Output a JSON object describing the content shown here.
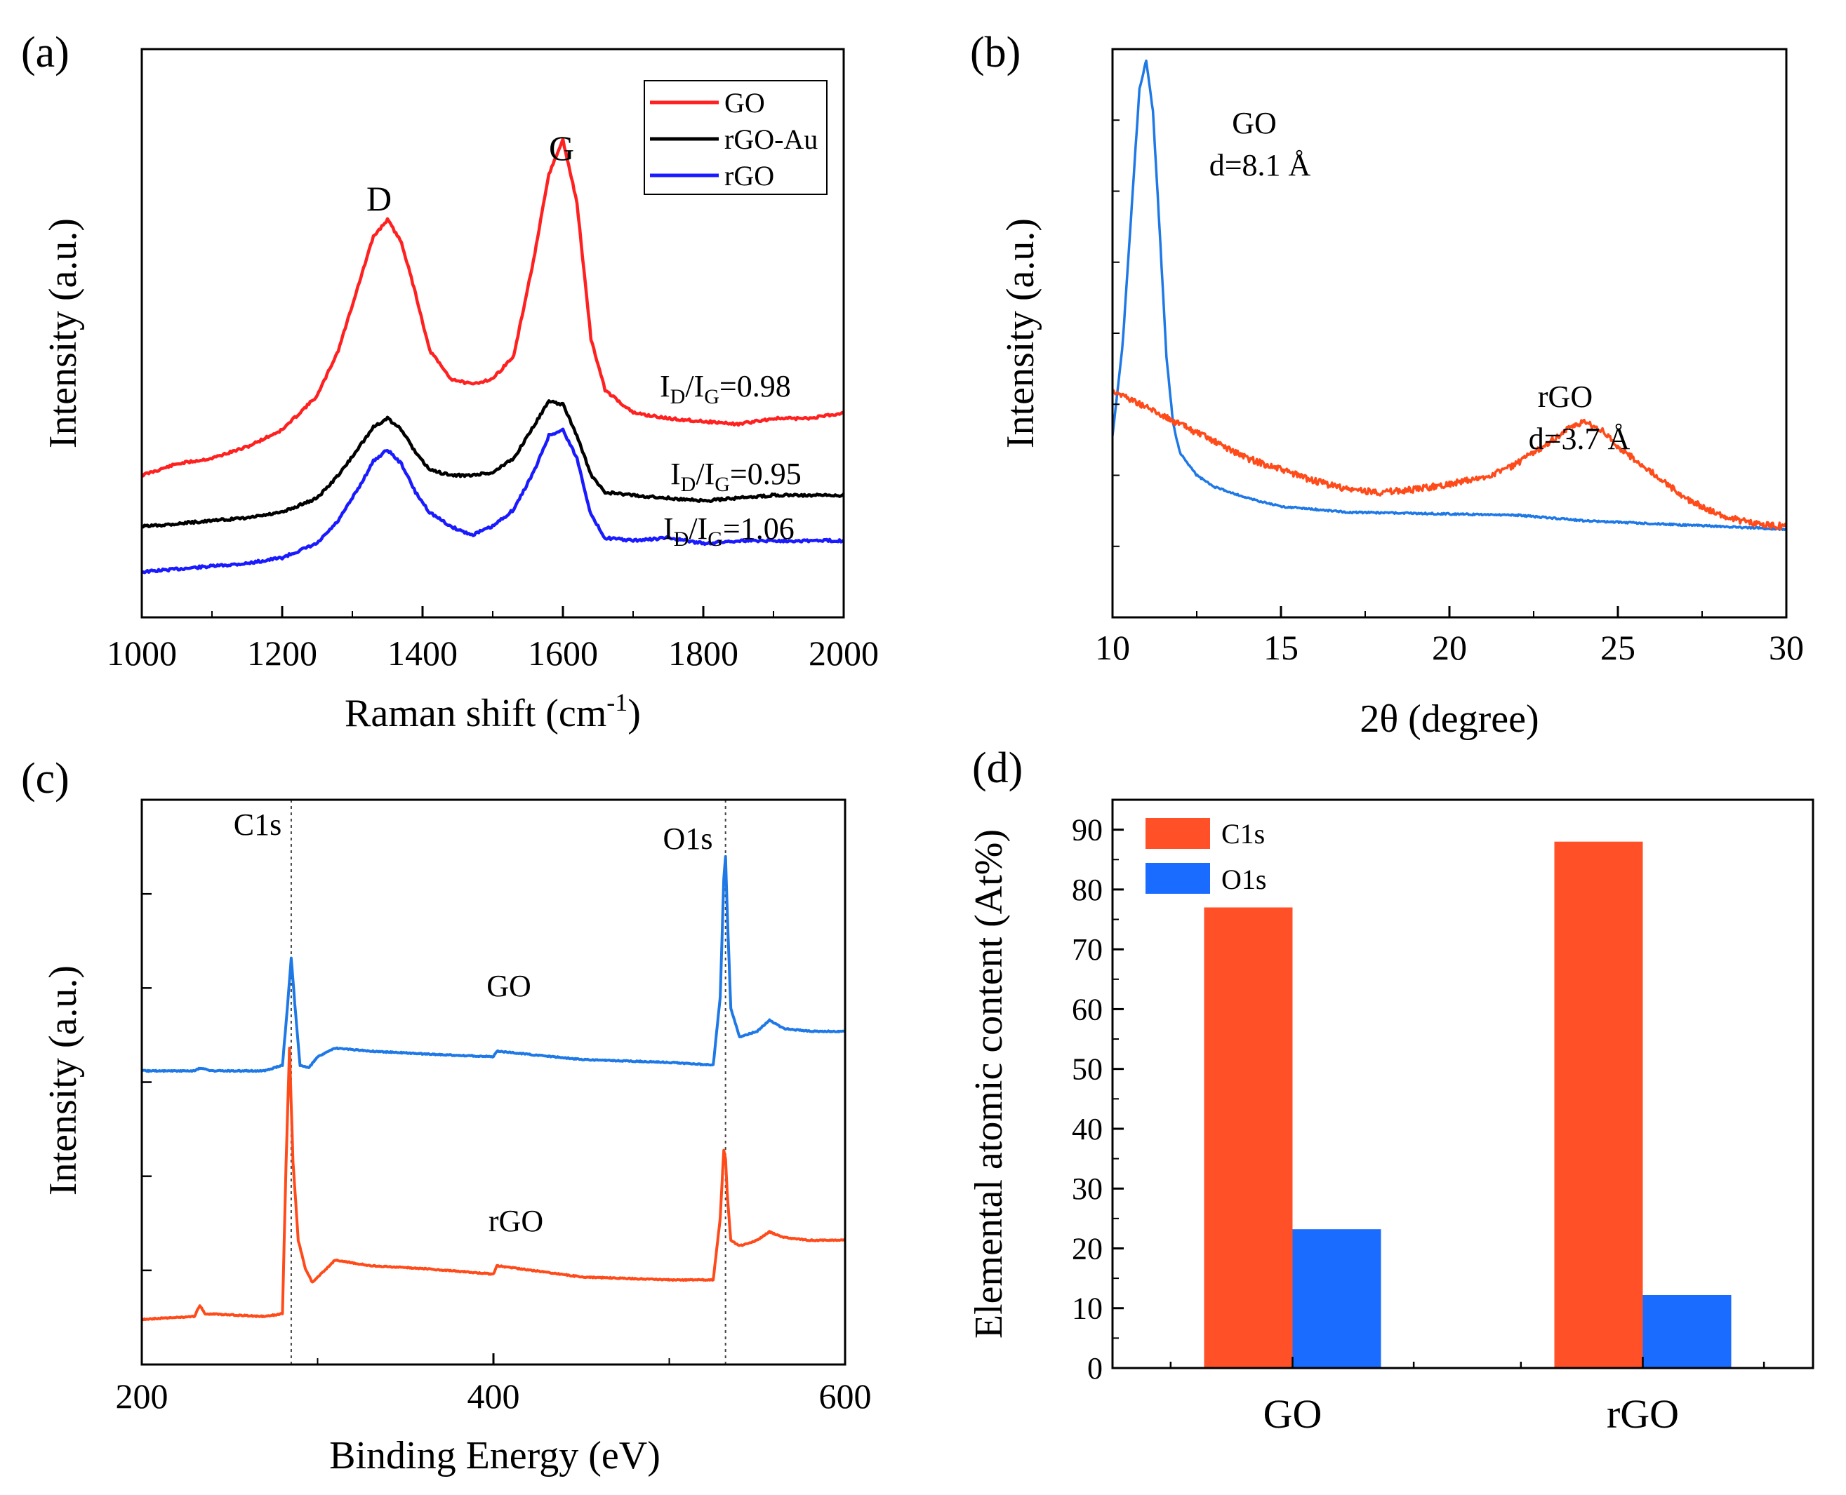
{
  "figure": {
    "panels": [
      {
        "label": "(a)",
        "xlabel_base": "Raman shift (cm",
        "xlabel_sup": "-1",
        "xlabel_end": ")",
        "ylabel": "Intensity (a.u.)",
        "peak_labels": [
          "D",
          "G"
        ],
        "ratio_labels": [
          {
            "pre": "I",
            "sub1": "D",
            "mid": "/I",
            "sub2": "G",
            "val": "=0.98"
          },
          {
            "pre": "I",
            "sub1": "D",
            "mid": "/I",
            "sub2": "G",
            "val": "=0.95"
          },
          {
            "pre": "I",
            "sub1": "D",
            "mid": "/I",
            "sub2": "G",
            "val": "=1.06"
          }
        ]
      },
      {
        "label": "(b)",
        "xlabel": "2θ (degree)",
        "ylabel": "Intensity (a.u.)",
        "annotations": [
          {
            "name": "GO",
            "d": "d=8.1 Å"
          },
          {
            "name": "rGO",
            "d": "d=3.7 Å"
          }
        ]
      },
      {
        "label": "(c)",
        "xlabel": "Binding Energy (eV)",
        "ylabel": "Intensity (a.u.)",
        "peak_labels": [
          "C1s",
          "O1s"
        ],
        "series_labels": [
          "GO",
          "rGO"
        ]
      },
      {
        "label": "(d)",
        "ylabel": "Elemental atomic content (At%)"
      }
    ]
  },
  "chart_data": [
    {
      "type": "line",
      "title": "(a)",
      "xlabel": "Raman shift (cm-1)",
      "ylabel": "Intensity (a.u.)",
      "xlim": [
        1000,
        2000
      ],
      "xticks": [
        1000,
        1200,
        1400,
        1600,
        1800,
        2000
      ],
      "ylim": [
        0,
        10
      ],
      "legend": {
        "position": "top-right",
        "entries": [
          "GO",
          "rGO-Au",
          "rGO"
        ]
      },
      "series": [
        {
          "name": "GO",
          "color": "#ff2020",
          "x": [
            1000,
            1050,
            1100,
            1150,
            1200,
            1250,
            1280,
            1310,
            1330,
            1350,
            1370,
            1390,
            1410,
            1440,
            1470,
            1500,
            1530,
            1560,
            1580,
            1600,
            1620,
            1640,
            1660,
            1700,
            1750,
            1800,
            1850,
            1900,
            1950,
            2000
          ],
          "y": [
            2.5,
            2.7,
            2.8,
            3.0,
            3.3,
            3.9,
            4.7,
            5.9,
            6.7,
            7.0,
            6.6,
            5.7,
            4.7,
            4.2,
            4.1,
            4.2,
            4.6,
            6.4,
            7.8,
            8.4,
            7.3,
            4.9,
            4.0,
            3.6,
            3.5,
            3.45,
            3.4,
            3.5,
            3.5,
            3.6
          ]
        },
        {
          "name": "rGO-Au",
          "color": "#000000",
          "x": [
            1000,
            1050,
            1100,
            1150,
            1200,
            1250,
            1280,
            1310,
            1330,
            1350,
            1370,
            1390,
            1410,
            1440,
            1470,
            1500,
            1530,
            1560,
            1580,
            1600,
            1620,
            1640,
            1660,
            1700,
            1750,
            1800,
            1850,
            1900,
            1950,
            2000
          ],
          "y": [
            1.6,
            1.65,
            1.7,
            1.75,
            1.85,
            2.1,
            2.5,
            3.0,
            3.35,
            3.5,
            3.3,
            2.9,
            2.6,
            2.5,
            2.5,
            2.55,
            2.8,
            3.4,
            3.8,
            3.75,
            3.2,
            2.5,
            2.2,
            2.15,
            2.1,
            2.05,
            2.1,
            2.15,
            2.15,
            2.15
          ]
        },
        {
          "name": "rGO",
          "color": "#1a1aff",
          "x": [
            1000,
            1050,
            1100,
            1150,
            1200,
            1250,
            1280,
            1310,
            1330,
            1350,
            1370,
            1390,
            1410,
            1440,
            1470,
            1500,
            1530,
            1560,
            1580,
            1600,
            1620,
            1640,
            1660,
            1700,
            1750,
            1800,
            1850,
            1900,
            1950,
            2000
          ],
          "y": [
            0.8,
            0.85,
            0.9,
            0.95,
            1.05,
            1.3,
            1.7,
            2.3,
            2.75,
            2.95,
            2.7,
            2.2,
            1.85,
            1.6,
            1.45,
            1.6,
            1.9,
            2.6,
            3.2,
            3.3,
            2.8,
            1.8,
            1.4,
            1.35,
            1.4,
            1.3,
            1.35,
            1.35,
            1.35,
            1.35
          ]
        }
      ]
    },
    {
      "type": "line",
      "title": "(b)",
      "xlabel": "2θ (degree)",
      "ylabel": "Intensity (a.u.)",
      "xlim": [
        10,
        30
      ],
      "xticks": [
        10,
        15,
        20,
        25,
        30
      ],
      "ylim": [
        0,
        10
      ],
      "series": [
        {
          "name": "GO",
          "color": "#1e78e6",
          "x": [
            10,
            10.3,
            10.6,
            10.8,
            11.0,
            11.2,
            11.4,
            11.6,
            11.8,
            12.0,
            12.5,
            13,
            14,
            15,
            17,
            20,
            22,
            24,
            26,
            28,
            30
          ],
          "y": [
            3.2,
            4.8,
            7.5,
            9.3,
            9.8,
            8.9,
            6.8,
            4.6,
            3.4,
            2.9,
            2.5,
            2.3,
            2.1,
            1.95,
            1.85,
            1.82,
            1.8,
            1.7,
            1.65,
            1.6,
            1.55
          ]
        },
        {
          "name": "rGO",
          "color": "#ff4a1a",
          "x": [
            10,
            11,
            12,
            13,
            14,
            15,
            16,
            17,
            18,
            19,
            20,
            21,
            22,
            23,
            23.5,
            24,
            24.5,
            25,
            26,
            27,
            28,
            29,
            30
          ],
          "y": [
            4.0,
            3.7,
            3.4,
            3.1,
            2.8,
            2.6,
            2.4,
            2.25,
            2.2,
            2.25,
            2.35,
            2.45,
            2.7,
            3.1,
            3.3,
            3.45,
            3.3,
            3.0,
            2.55,
            2.1,
            1.8,
            1.65,
            1.6
          ]
        }
      ],
      "annotations": [
        "GO d=8.1 Å",
        "rGO d=3.7 Å"
      ]
    },
    {
      "type": "line",
      "title": "(c)",
      "xlabel": "Binding Energy (eV)",
      "ylabel": "Intensity (a.u.)",
      "xlim": [
        200,
        600
      ],
      "xticks": [
        200,
        400,
        600
      ],
      "ylim": [
        0,
        10
      ],
      "reference_lines_x": [
        285,
        532
      ],
      "series": [
        {
          "name": "GO",
          "color": "#1e78e6",
          "x": [
            200,
            230,
            233,
            240,
            270,
            280,
            283,
            285,
            287,
            290,
            295,
            300,
            310,
            330,
            360,
            400,
            402,
            450,
            500,
            525,
            529,
            531,
            532,
            533,
            535,
            540,
            550,
            557,
            565,
            580,
            600
          ],
          "y": [
            5.2,
            5.2,
            5.25,
            5.2,
            5.2,
            5.3,
            6.4,
            7.2,
            6.4,
            5.3,
            5.25,
            5.45,
            5.6,
            5.55,
            5.5,
            5.45,
            5.55,
            5.4,
            5.35,
            5.3,
            6.5,
            8.6,
            9.0,
            8.0,
            6.3,
            5.8,
            5.9,
            6.1,
            5.95,
            5.9,
            5.9
          ]
        },
        {
          "name": "rGO",
          "color": "#ff4a1a",
          "x": [
            200,
            230,
            233,
            236,
            270,
            280,
            282,
            284,
            286,
            289,
            293,
            297,
            310,
            330,
            360,
            400,
            402,
            450,
            500,
            525,
            529,
            531,
            532,
            533,
            535,
            540,
            550,
            557,
            565,
            580,
            600
          ],
          "y": [
            0.8,
            0.85,
            1.05,
            0.9,
            0.85,
            0.9,
            3.5,
            5.6,
            3.6,
            2.2,
            1.7,
            1.45,
            1.85,
            1.75,
            1.7,
            1.6,
            1.75,
            1.55,
            1.5,
            1.5,
            2.6,
            3.8,
            3.65,
            3.0,
            2.2,
            2.1,
            2.2,
            2.35,
            2.25,
            2.2,
            2.2
          ]
        }
      ],
      "series_annotations": [
        "GO",
        "rGO"
      ],
      "peak_annotations": [
        "C1s",
        "O1s"
      ]
    },
    {
      "type": "bar",
      "title": "(d)",
      "xlabel": "",
      "ylabel": "Elemental atomic content (At%)",
      "categories": [
        "GO",
        "rGO"
      ],
      "ylim": [
        0,
        95
      ],
      "yticks": [
        0,
        10,
        20,
        30,
        40,
        50,
        60,
        70,
        80,
        90
      ],
      "legend": {
        "position": "top-left",
        "entries": [
          "C1s",
          "O1s"
        ]
      },
      "series": [
        {
          "name": "C1s",
          "color": "#ff5028",
          "values": [
            77,
            88
          ]
        },
        {
          "name": "O1s",
          "color": "#1a6bff",
          "values": [
            23.2,
            12.2
          ]
        }
      ]
    }
  ]
}
